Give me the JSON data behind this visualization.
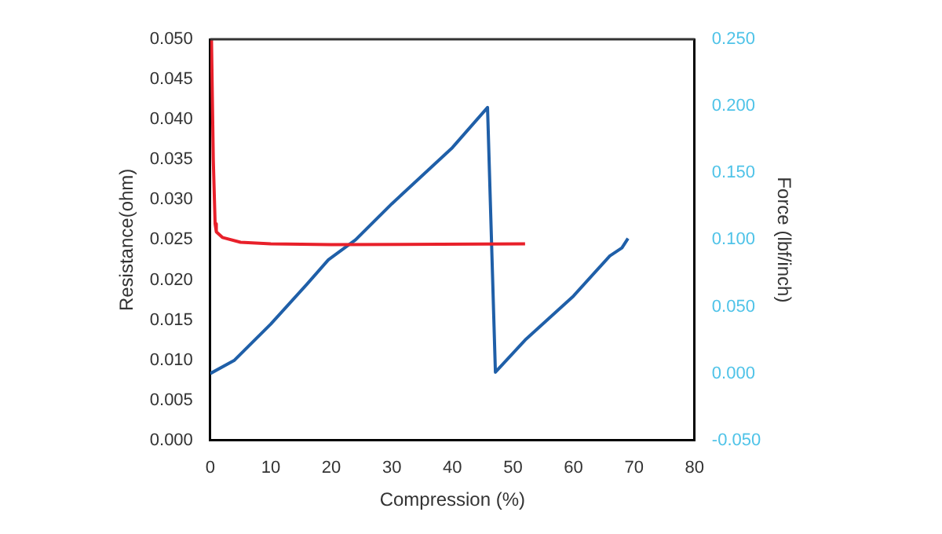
{
  "chart_data": {
    "type": "line",
    "xlabel": "Compression (%)",
    "ylabel": "Resistance(ohm)",
    "y2label": "Force (lbf/inch)",
    "xlim": [
      0,
      80
    ],
    "xticks": [
      0,
      10,
      20,
      30,
      40,
      50,
      60,
      70,
      80
    ],
    "ylim": [
      0,
      0.05
    ],
    "yticks": [
      {
        "value": 0,
        "label": "0.000"
      },
      {
        "value": 0.005,
        "label": "0.005"
      },
      {
        "value": 0.01,
        "label": "0.010"
      },
      {
        "value": 0.015,
        "label": "0.015"
      },
      {
        "value": 0.02,
        "label": "0.020"
      },
      {
        "value": 0.025,
        "label": "0.025"
      },
      {
        "value": 0.03,
        "label": "0.030"
      },
      {
        "value": 0.035,
        "label": "0.035"
      },
      {
        "value": 0.04,
        "label": "0.040"
      },
      {
        "value": 0.045,
        "label": "0.045"
      },
      {
        "value": 0.05,
        "label": "0.050"
      }
    ],
    "y2lim": [
      -0.05,
      0.25
    ],
    "y2ticks": [
      {
        "value": -0.05,
        "label": "-0.050"
      },
      {
        "value": 0,
        "label": "0.000"
      },
      {
        "value": 0.05,
        "label": "0.050"
      },
      {
        "value": 0.1,
        "label": "0.100"
      },
      {
        "value": 0.15,
        "label": "0.150"
      },
      {
        "value": 0.2,
        "label": "0.200"
      },
      {
        "value": 0.25,
        "label": "0.250"
      }
    ],
    "grid": false,
    "legend": false,
    "marker": "none",
    "line_style": "solid",
    "series": [
      {
        "color": "#e8202a",
        "x": [
          0.2,
          0.5,
          0.8,
          1,
          2,
          5,
          10,
          20,
          52
        ],
        "values": [
          0.05,
          0.035,
          0.027,
          0.026,
          0.0253,
          0.0247,
          0.0245,
          0.0244,
          0.0245
        ]
      },
      {
        "color": "#1f5fa8",
        "axis": "y2",
        "x": [
          0,
          4,
          10,
          16,
          19.5,
          24,
          30,
          40,
          45.8,
          47.1,
          52,
          60,
          66,
          68,
          69
        ],
        "values": [
          0,
          0.01,
          0.037,
          0.067,
          0.085,
          0.1,
          0.127,
          0.169,
          0.199,
          0.001,
          0.025,
          0.058,
          0.088,
          0.094,
          0.101
        ]
      }
    ]
  }
}
